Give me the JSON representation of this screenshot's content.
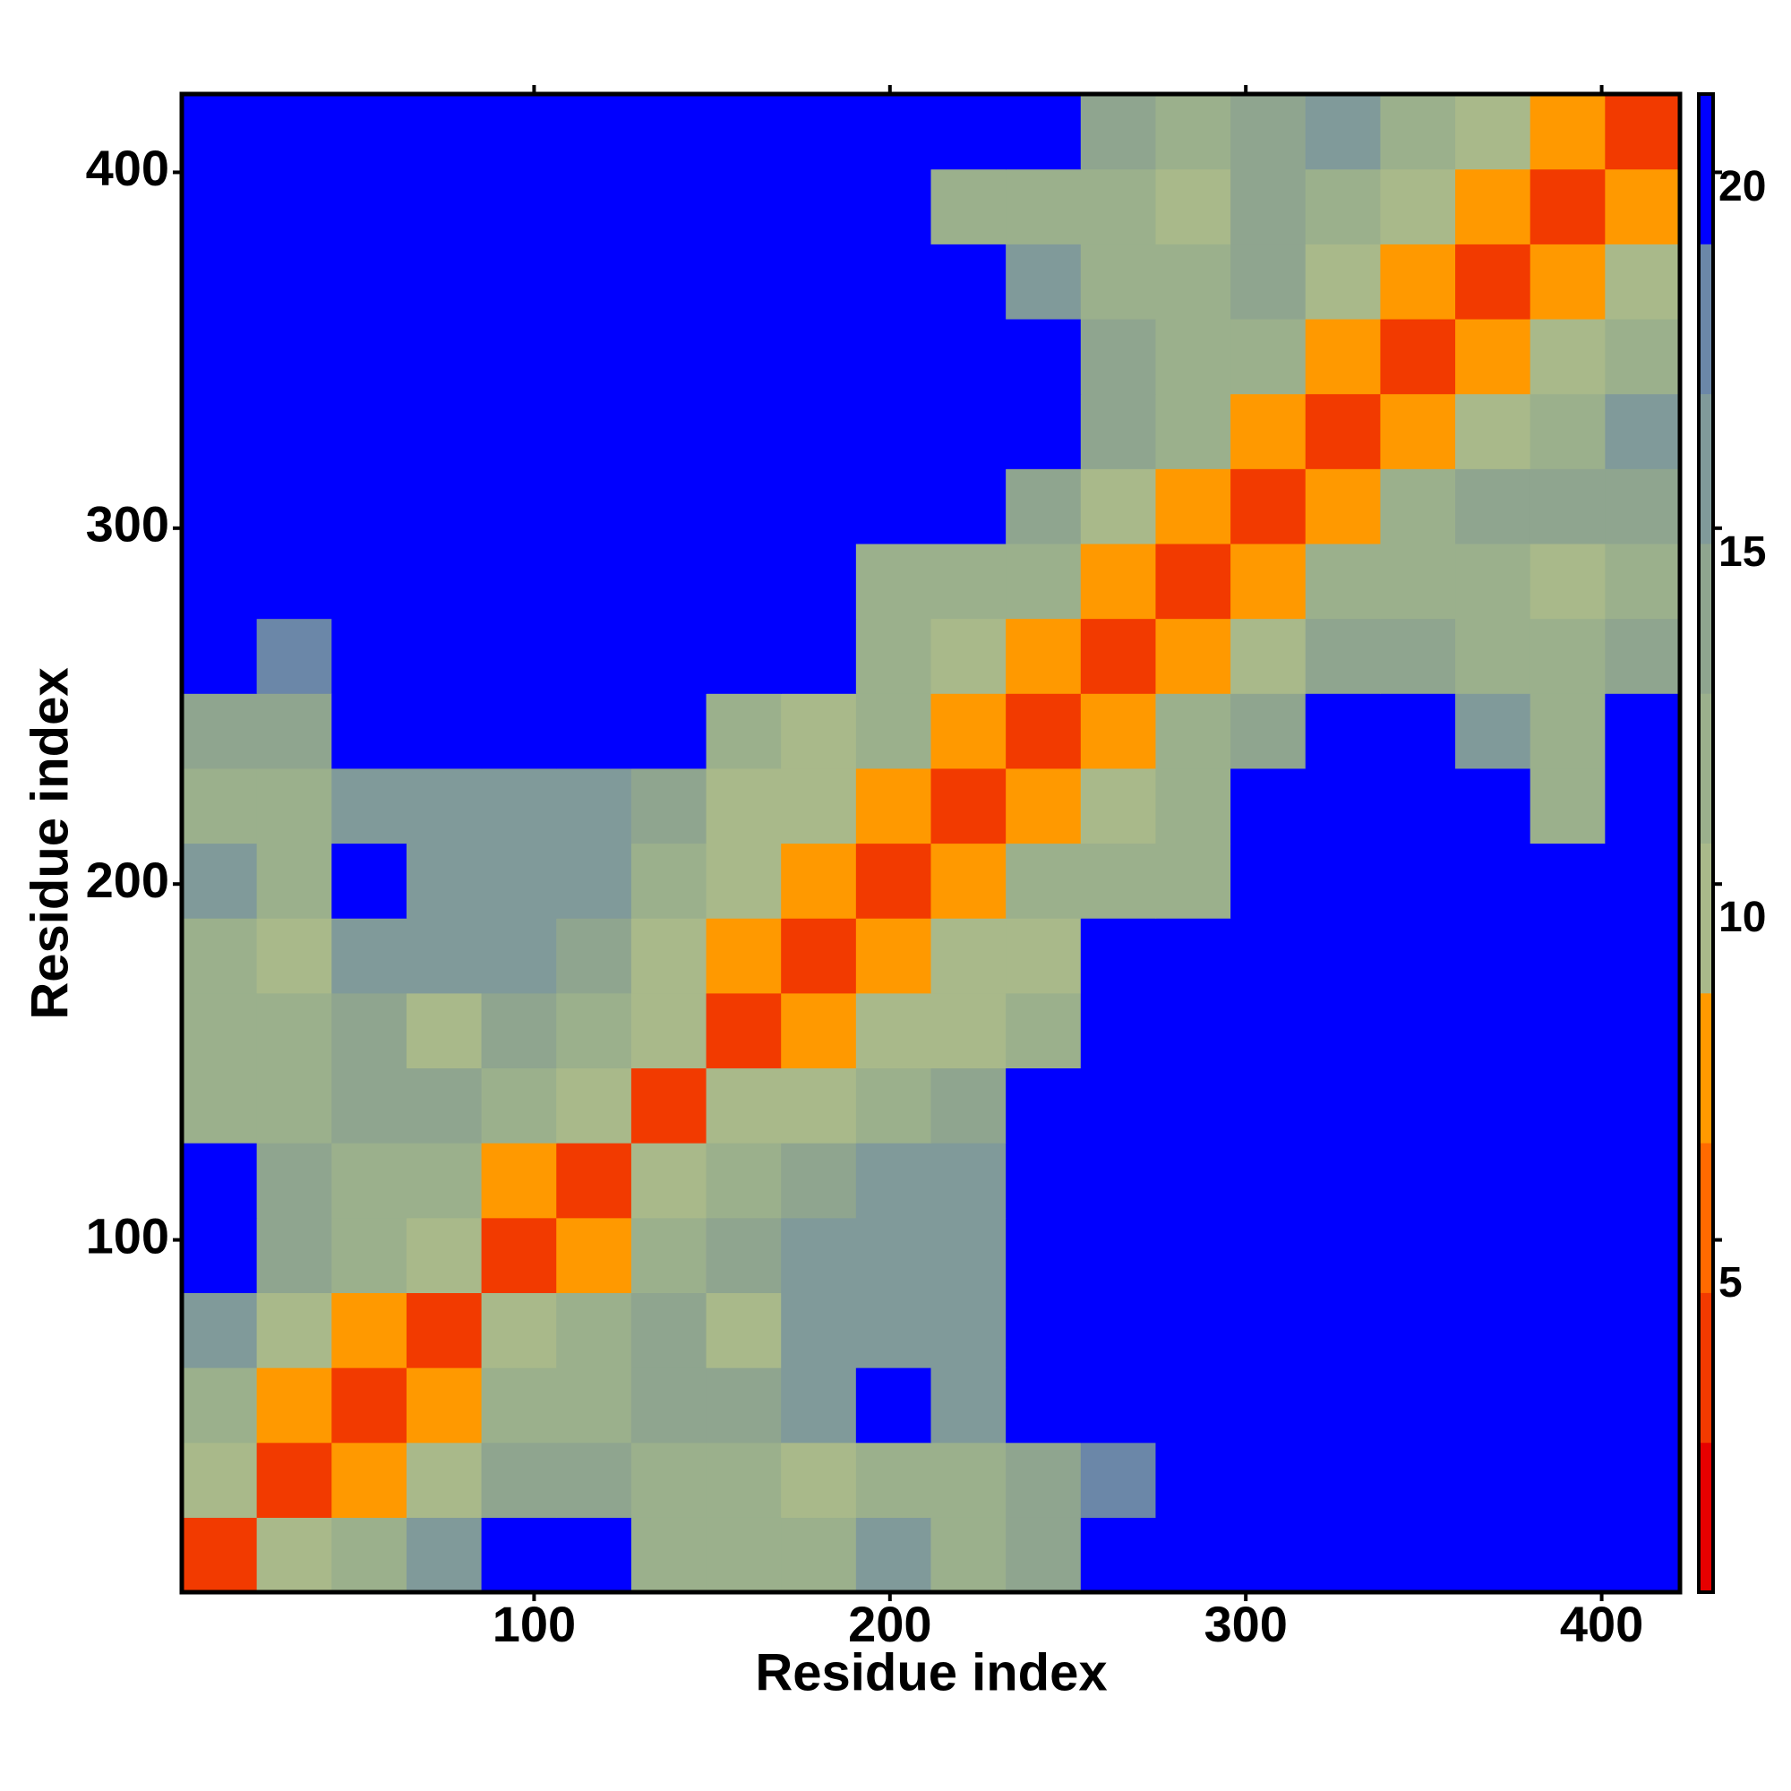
{
  "chart_data": {
    "type": "heatmap",
    "xlabel": "Residue index",
    "ylabel": "Residue index",
    "xlim": [
      1,
      422
    ],
    "ylim": [
      1,
      422
    ],
    "xticks": [
      100,
      200,
      300,
      400
    ],
    "yticks": [
      100,
      200,
      300,
      400
    ],
    "z": [
      [
        3,
        10,
        13,
        16,
        21,
        21,
        12,
        13,
        13,
        16,
        13,
        14,
        21,
        21,
        21,
        21,
        21,
        21,
        21,
        21
      ],
      [
        10,
        3,
        9,
        10,
        14,
        14,
        12,
        12,
        11,
        12,
        12,
        14,
        18,
        21,
        21,
        21,
        21,
        21,
        21,
        21
      ],
      [
        13,
        9,
        3,
        8,
        12,
        13,
        14,
        14,
        16,
        21,
        17,
        21,
        21,
        21,
        21,
        21,
        21,
        21,
        21,
        21
      ],
      [
        16,
        10,
        8,
        3,
        10,
        12,
        14,
        11,
        17,
        17,
        16,
        21,
        21,
        21,
        21,
        21,
        21,
        21,
        21,
        21
      ],
      [
        21,
        14,
        12,
        10,
        3,
        9,
        12,
        15,
        16,
        16,
        16,
        21,
        21,
        21,
        21,
        21,
        21,
        21,
        21,
        21
      ],
      [
        21,
        14,
        13,
        12,
        9,
        3,
        10,
        13,
        14,
        17,
        17,
        21,
        21,
        21,
        21,
        21,
        21,
        21,
        21,
        21
      ],
      [
        12,
        12,
        14,
        14,
        12,
        10,
        3,
        10,
        11,
        13,
        14,
        21,
        21,
        21,
        21,
        21,
        21,
        21,
        21,
        21
      ],
      [
        13,
        12,
        14,
        11,
        15,
        13,
        10,
        3,
        9,
        10,
        11,
        13,
        21,
        21,
        21,
        21,
        21,
        21,
        21,
        21
      ],
      [
        13,
        11,
        16,
        17,
        16,
        14,
        11,
        9,
        3,
        8,
        10,
        11,
        21,
        21,
        21,
        21,
        21,
        21,
        21,
        21
      ],
      [
        16,
        12,
        21,
        17,
        16,
        17,
        13,
        10,
        8,
        3,
        9,
        12,
        12,
        13,
        21,
        21,
        21,
        21,
        21,
        21
      ],
      [
        13,
        12,
        17,
        16,
        16,
        17,
        14,
        11,
        10,
        9,
        3,
        9,
        10,
        12,
        21,
        21,
        21,
        21,
        13,
        21
      ],
      [
        14,
        14,
        21,
        21,
        21,
        21,
        21,
        13,
        11,
        12,
        9,
        3,
        8,
        12,
        14,
        21,
        21,
        17,
        12,
        21
      ],
      [
        21,
        18,
        21,
        21,
        21,
        21,
        21,
        21,
        21,
        12,
        10,
        8,
        3,
        9,
        11,
        14,
        14,
        13,
        12,
        14
      ],
      [
        21,
        21,
        21,
        21,
        21,
        21,
        21,
        21,
        21,
        13,
        12,
        12,
        9,
        3,
        9,
        12,
        13,
        12,
        11,
        12
      ],
      [
        21,
        21,
        21,
        21,
        21,
        21,
        21,
        21,
        21,
        21,
        21,
        14,
        11,
        9,
        3,
        9,
        12,
        14,
        14,
        14
      ],
      [
        21,
        21,
        21,
        21,
        21,
        21,
        21,
        21,
        21,
        21,
        21,
        21,
        14,
        12,
        9,
        3,
        8,
        11,
        12,
        16
      ],
      [
        21,
        21,
        21,
        21,
        21,
        21,
        21,
        21,
        21,
        21,
        21,
        21,
        14,
        13,
        12,
        8,
        3,
        9,
        11,
        13
      ],
      [
        21,
        21,
        21,
        21,
        21,
        21,
        21,
        21,
        21,
        21,
        21,
        17,
        13,
        12,
        14,
        11,
        9,
        3,
        9,
        11
      ],
      [
        21,
        21,
        21,
        21,
        21,
        21,
        21,
        21,
        21,
        21,
        13,
        12,
        12,
        11,
        14,
        12,
        11,
        9,
        3,
        9
      ],
      [
        21,
        21,
        21,
        21,
        21,
        21,
        21,
        21,
        21,
        21,
        21,
        21,
        14,
        12,
        14,
        16,
        13,
        11,
        9,
        3
      ]
    ],
    "colorbar": {
      "lim": [
        0.8,
        21.3
      ],
      "ticks": [
        5,
        10,
        15,
        20
      ],
      "colors": [
        "#e60000",
        "#f23a00",
        "#ff6a00",
        "#ff9900",
        "#a9b98a",
        "#9bb08c",
        "#8fa58f",
        "#809a9a",
        "#6b87a8",
        "#0000ff"
      ]
    }
  }
}
